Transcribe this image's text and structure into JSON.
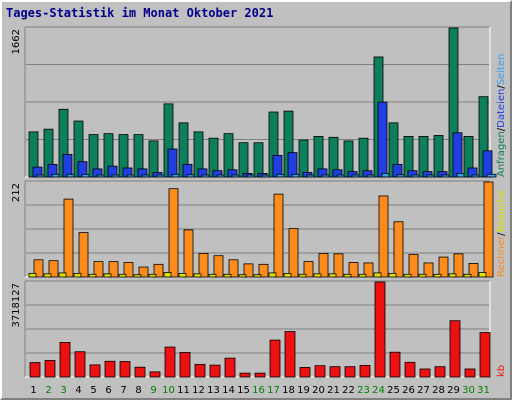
{
  "title": "Tages-Statistik im Monat Oktober 2021",
  "colors": {
    "anfragen": "#0e7f5c",
    "dateien": "#1f3fe0",
    "seiten": "#3aa0e8",
    "besuche": "#e0e000",
    "rechner": "#ff8c1a",
    "kb": "#ee1111",
    "weekend_label": "#008000",
    "weekday_label": "#000000"
  },
  "chart_data": [
    {
      "type": "bar",
      "panel": "top",
      "ymax_label": "1662",
      "ylim": [
        0,
        1662
      ],
      "categories": [
        "1",
        "2",
        "3",
        "4",
        "5",
        "6",
        "7",
        "8",
        "9",
        "10",
        "11",
        "12",
        "13",
        "14",
        "15",
        "16",
        "17",
        "18",
        "19",
        "20",
        "21",
        "22",
        "23",
        "24",
        "25",
        "26",
        "27",
        "28",
        "29",
        "30",
        "31"
      ],
      "legend": [
        "Anfragen",
        "/",
        "Dateien",
        "/",
        "Seiten"
      ],
      "series": [
        {
          "name": "Anfragen",
          "values": [
            500,
            530,
            750,
            620,
            470,
            480,
            470,
            470,
            400,
            810,
            600,
            500,
            430,
            480,
            380,
            380,
            720,
            730,
            410,
            450,
            440,
            400,
            430,
            1330,
            600,
            450,
            450,
            460,
            1660,
            450,
            890
          ]
        },
        {
          "name": "Dateien",
          "values": [
            110,
            140,
            250,
            170,
            90,
            120,
            100,
            90,
            50,
            310,
            140,
            90,
            70,
            80,
            40,
            40,
            240,
            270,
            50,
            90,
            80,
            60,
            70,
            830,
            140,
            70,
            60,
            60,
            490,
            100,
            290
          ]
        },
        {
          "name": "Seiten",
          "values": [
            20,
            30,
            30,
            30,
            20,
            20,
            20,
            20,
            15,
            30,
            25,
            20,
            18,
            18,
            12,
            12,
            30,
            30,
            15,
            20,
            18,
            15,
            15,
            40,
            25,
            15,
            15,
            15,
            40,
            18,
            30
          ]
        }
      ]
    },
    {
      "type": "bar",
      "panel": "middle",
      "ymax_label": "212",
      "ylim": [
        0,
        212
      ],
      "categories": [
        "1",
        "2",
        "3",
        "4",
        "5",
        "6",
        "7",
        "8",
        "9",
        "10",
        "11",
        "12",
        "13",
        "14",
        "15",
        "16",
        "17",
        "18",
        "19",
        "20",
        "21",
        "22",
        "23",
        "24",
        "25",
        "26",
        "27",
        "28",
        "29",
        "30",
        "31"
      ],
      "legend": [
        "Rechner",
        "/",
        "Besuche"
      ],
      "series": [
        {
          "name": "Rechner",
          "values": [
            38,
            36,
            172,
            98,
            34,
            34,
            32,
            22,
            28,
            195,
            104,
            52,
            47,
            38,
            29,
            28,
            183,
            107,
            34,
            52,
            51,
            32,
            31,
            179,
            122,
            50,
            31,
            44,
            51,
            30,
            211
          ]
        },
        {
          "name": "Besuche",
          "values": [
            8,
            7,
            9,
            8,
            6,
            7,
            6,
            5,
            6,
            10,
            8,
            7,
            6,
            6,
            5,
            5,
            9,
            8,
            6,
            7,
            7,
            6,
            6,
            9,
            8,
            6,
            6,
            6,
            7,
            6,
            10
          ]
        }
      ]
    },
    {
      "type": "bar",
      "panel": "bottom",
      "ymax_label": "3718127",
      "ylim": [
        0,
        3718127
      ],
      "categories": [
        "1",
        "2",
        "3",
        "4",
        "5",
        "6",
        "7",
        "8",
        "9",
        "10",
        "11",
        "12",
        "13",
        "14",
        "15",
        "16",
        "17",
        "18",
        "19",
        "20",
        "21",
        "22",
        "23",
        "24",
        "25",
        "26",
        "27",
        "28",
        "29",
        "30",
        "31"
      ],
      "legend": [
        "kb"
      ],
      "series": [
        {
          "name": "kb",
          "values": [
            560000,
            640000,
            1340000,
            980000,
            470000,
            610000,
            600000,
            380000,
            200000,
            1160000,
            950000,
            490000,
            460000,
            730000,
            150000,
            150000,
            1430000,
            1760000,
            370000,
            440000,
            400000,
            400000,
            450000,
            3718127,
            960000,
            570000,
            310000,
            400000,
            2180000,
            310000,
            1720000
          ]
        }
      ]
    }
  ],
  "weekend_days": [
    "2",
    "3",
    "9",
    "10",
    "16",
    "17",
    "23",
    "24",
    "30",
    "31"
  ]
}
